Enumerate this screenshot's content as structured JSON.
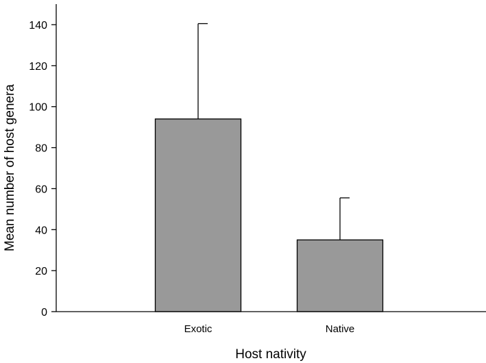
{
  "chart_data": {
    "type": "bar",
    "categories": [
      "Exotic",
      "Native"
    ],
    "values": [
      94,
      35
    ],
    "error_upper": [
      140.5,
      55.5
    ],
    "xlabel": "Host nativity",
    "ylabel": "Mean number of host genera",
    "ylim": [
      0,
      150
    ],
    "yticks": [
      0,
      20,
      40,
      60,
      80,
      100,
      120,
      140
    ],
    "grid": false,
    "bar_color": "#999999"
  }
}
